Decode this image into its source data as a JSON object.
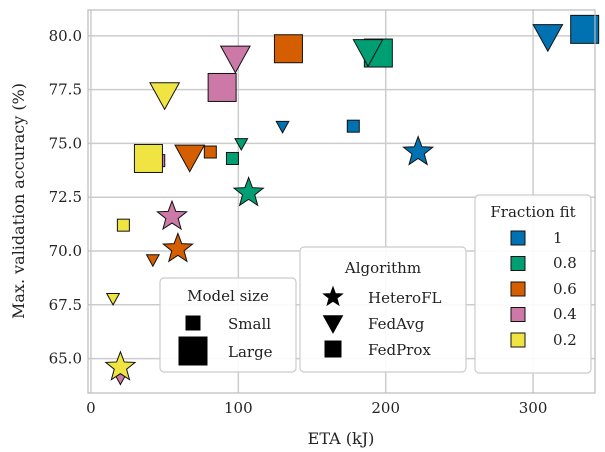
{
  "chart_data": {
    "type": "scatter",
    "xlabel": "ETA (kJ)",
    "ylabel": "Max. validation accuracy (%)",
    "xlim": [
      -2,
      342
    ],
    "ylim": [
      63.4,
      81.2
    ],
    "xticks": [
      0,
      100,
      200,
      300
    ],
    "yticks": [
      65.0,
      67.5,
      70.0,
      72.5,
      75.0,
      77.5,
      80.0
    ],
    "ytick_labels": [
      "65.0",
      "67.5",
      "70.0",
      "72.5",
      "75.0",
      "77.5",
      "80.0"
    ],
    "grid": true,
    "colors": {
      "1": "#0072b2",
      "0.8": "#009e73",
      "0.6": "#d55e00",
      "0.4": "#cc79a7",
      "0.2": "#f0e442"
    },
    "legends": {
      "fraction_fit": {
        "title": "Fraction fit",
        "entries": [
          "1",
          "0.8",
          "0.6",
          "0.4",
          "0.2"
        ]
      },
      "algorithm": {
        "title": "Algorithm",
        "entries": [
          "HeteroFL",
          "FedAvg",
          "FedProx"
        ]
      },
      "model_size": {
        "title": "Model size",
        "entries": [
          "Small",
          "Large"
        ]
      }
    },
    "points": [
      {
        "algorithm": "FedProx",
        "fraction": "1",
        "size": "Large",
        "x": 335,
        "y": 80.3
      },
      {
        "algorithm": "FedAvg",
        "fraction": "1",
        "size": "Large",
        "x": 310,
        "y": 80.0
      },
      {
        "algorithm": "FedProx",
        "fraction": "1",
        "size": "Small",
        "x": 178,
        "y": 75.8
      },
      {
        "algorithm": "FedAvg",
        "fraction": "1",
        "size": "Small",
        "x": 130,
        "y": 75.8
      },
      {
        "algorithm": "HeteroFL",
        "fraction": "1",
        "size": "Large",
        "x": 222,
        "y": 74.6
      },
      {
        "algorithm": "FedProx",
        "fraction": "0.8",
        "size": "Large",
        "x": 195,
        "y": 79.2
      },
      {
        "algorithm": "FedAvg",
        "fraction": "0.8",
        "size": "Large",
        "x": 188,
        "y": 79.3
      },
      {
        "algorithm": "FedAvg",
        "fraction": "0.8",
        "size": "Small",
        "x": 102,
        "y": 75.0
      },
      {
        "algorithm": "FedProx",
        "fraction": "0.8",
        "size": "Small",
        "x": 96,
        "y": 74.3
      },
      {
        "algorithm": "HeteroFL",
        "fraction": "0.8",
        "size": "Large",
        "x": 107,
        "y": 72.7
      },
      {
        "algorithm": "FedProx",
        "fraction": "0.6",
        "size": "Large",
        "x": 134,
        "y": 79.4
      },
      {
        "algorithm": "FedAvg",
        "fraction": "0.6",
        "size": "Large",
        "x": 67,
        "y": 74.4
      },
      {
        "algorithm": "FedProx",
        "fraction": "0.6",
        "size": "Small",
        "x": 81,
        "y": 74.6
      },
      {
        "algorithm": "HeteroFL",
        "fraction": "0.6",
        "size": "Large",
        "x": 59,
        "y": 70.1
      },
      {
        "algorithm": "FedAvg",
        "fraction": "0.6",
        "size": "Small",
        "x": 42,
        "y": 69.6
      },
      {
        "algorithm": "FedAvg",
        "fraction": "0.4",
        "size": "Large",
        "x": 98,
        "y": 79.0
      },
      {
        "algorithm": "FedProx",
        "fraction": "0.4",
        "size": "Large",
        "x": 89,
        "y": 77.6
      },
      {
        "algorithm": "FedProx",
        "fraction": "0.4",
        "size": "Small",
        "x": 46,
        "y": 74.2
      },
      {
        "algorithm": "HeteroFL",
        "fraction": "0.4",
        "size": "Large",
        "x": 55,
        "y": 71.6
      },
      {
        "algorithm": "FedAvg",
        "fraction": "0.4",
        "size": "Small",
        "x": 20,
        "y": 64.1
      },
      {
        "algorithm": "FedAvg",
        "fraction": "0.2",
        "size": "Large",
        "x": 50,
        "y": 77.3
      },
      {
        "algorithm": "FedProx",
        "fraction": "0.2",
        "size": "Large",
        "x": 39,
        "y": 74.3
      },
      {
        "algorithm": "FedProx",
        "fraction": "0.2",
        "size": "Small",
        "x": 22,
        "y": 71.2
      },
      {
        "algorithm": "FedAvg",
        "fraction": "0.2",
        "size": "Small",
        "x": 15,
        "y": 67.8
      },
      {
        "algorithm": "HeteroFL",
        "fraction": "0.2",
        "size": "Large",
        "x": 20,
        "y": 64.6
      }
    ]
  }
}
